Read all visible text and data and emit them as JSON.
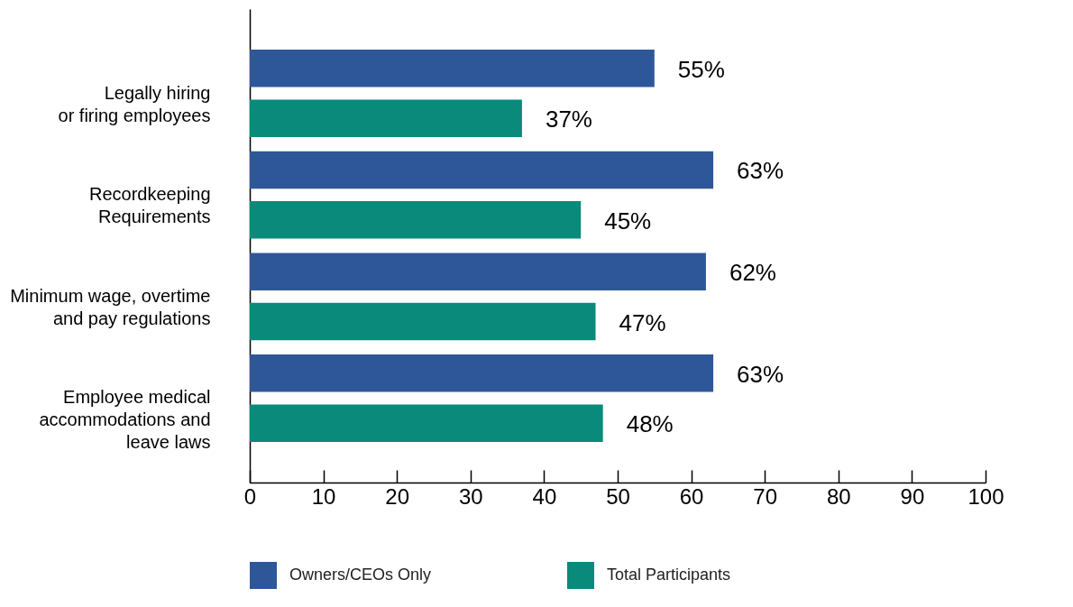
{
  "chart_data": {
    "type": "bar",
    "orientation": "horizontal",
    "categories": [
      "Legally hiring\nor firing employees",
      "Recordkeeping\nRequirements",
      "Minimum wage, overtime\nand pay regulations",
      "Employee medical\naccommodations and\nleave laws"
    ],
    "series": [
      {
        "name": "Owners/CEOs Only",
        "color": "#2e579a",
        "values": [
          55,
          63,
          62,
          63
        ],
        "value_labels": [
          "55%",
          "63%",
          "62%",
          "63%"
        ]
      },
      {
        "name": "Total Participants",
        "color": "#0a8a7a",
        "values": [
          37,
          45,
          47,
          48
        ],
        "value_labels": [
          "37%",
          "45%",
          "47%",
          "48%"
        ]
      }
    ],
    "xlim": [
      0,
      100
    ],
    "xticks": [
      0,
      10,
      20,
      30,
      40,
      50,
      60,
      70,
      80,
      90,
      100
    ],
    "grid": false,
    "legend": "bottom"
  }
}
